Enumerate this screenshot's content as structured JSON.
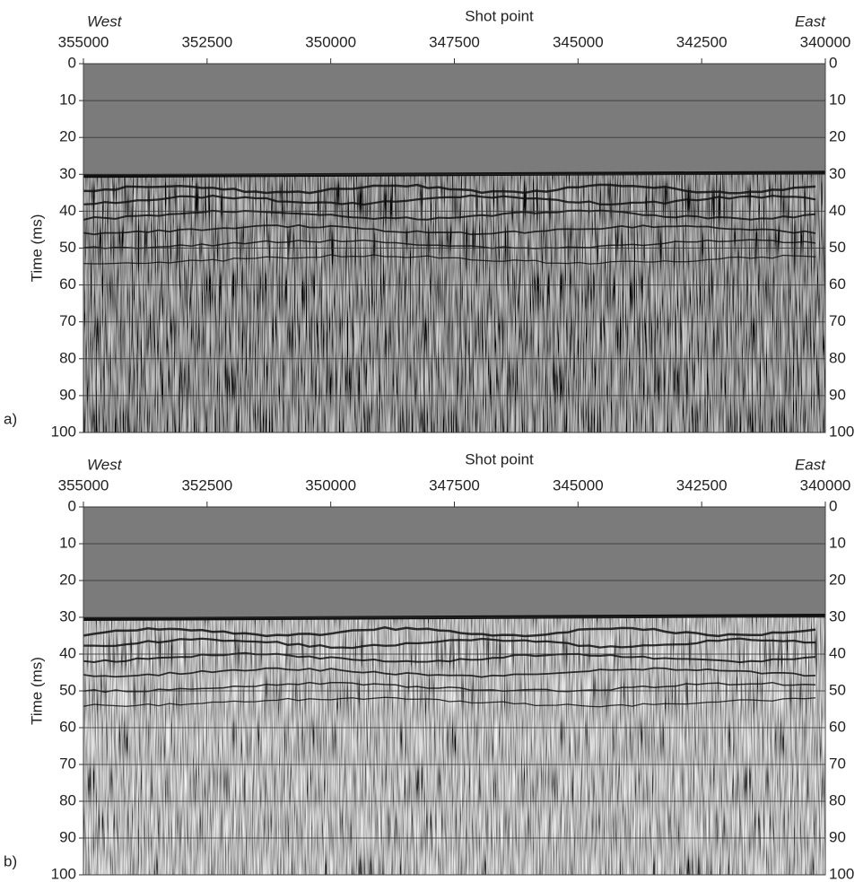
{
  "chart_data": [
    {
      "type": "seismic",
      "panel_label": "a)",
      "title": "Shot point",
      "left_label": "West",
      "right_label": "East",
      "ylabel": "Time (ms)",
      "xlim": [
        355000,
        340000
      ],
      "xticks": [
        355000,
        352500,
        350000,
        347500,
        345000,
        342500,
        340000
      ],
      "ylim": [
        0,
        100
      ],
      "y_reversed": true,
      "yticks": [
        0,
        10,
        20,
        30,
        40,
        50,
        60,
        70,
        80,
        90,
        100
      ],
      "grid": true
    },
    {
      "type": "seismic",
      "panel_label": "b)",
      "title": "Shot point",
      "left_label": "West",
      "right_label": "East",
      "ylabel": "Time (ms)",
      "xlim": [
        355000,
        340000
      ],
      "xticks": [
        355000,
        352500,
        350000,
        347500,
        345000,
        342500,
        340000
      ],
      "ylim": [
        0,
        100
      ],
      "y_reversed": true,
      "yticks": [
        0,
        10,
        20,
        30,
        40,
        50,
        60,
        70,
        80,
        90,
        100
      ],
      "grid": true
    }
  ]
}
